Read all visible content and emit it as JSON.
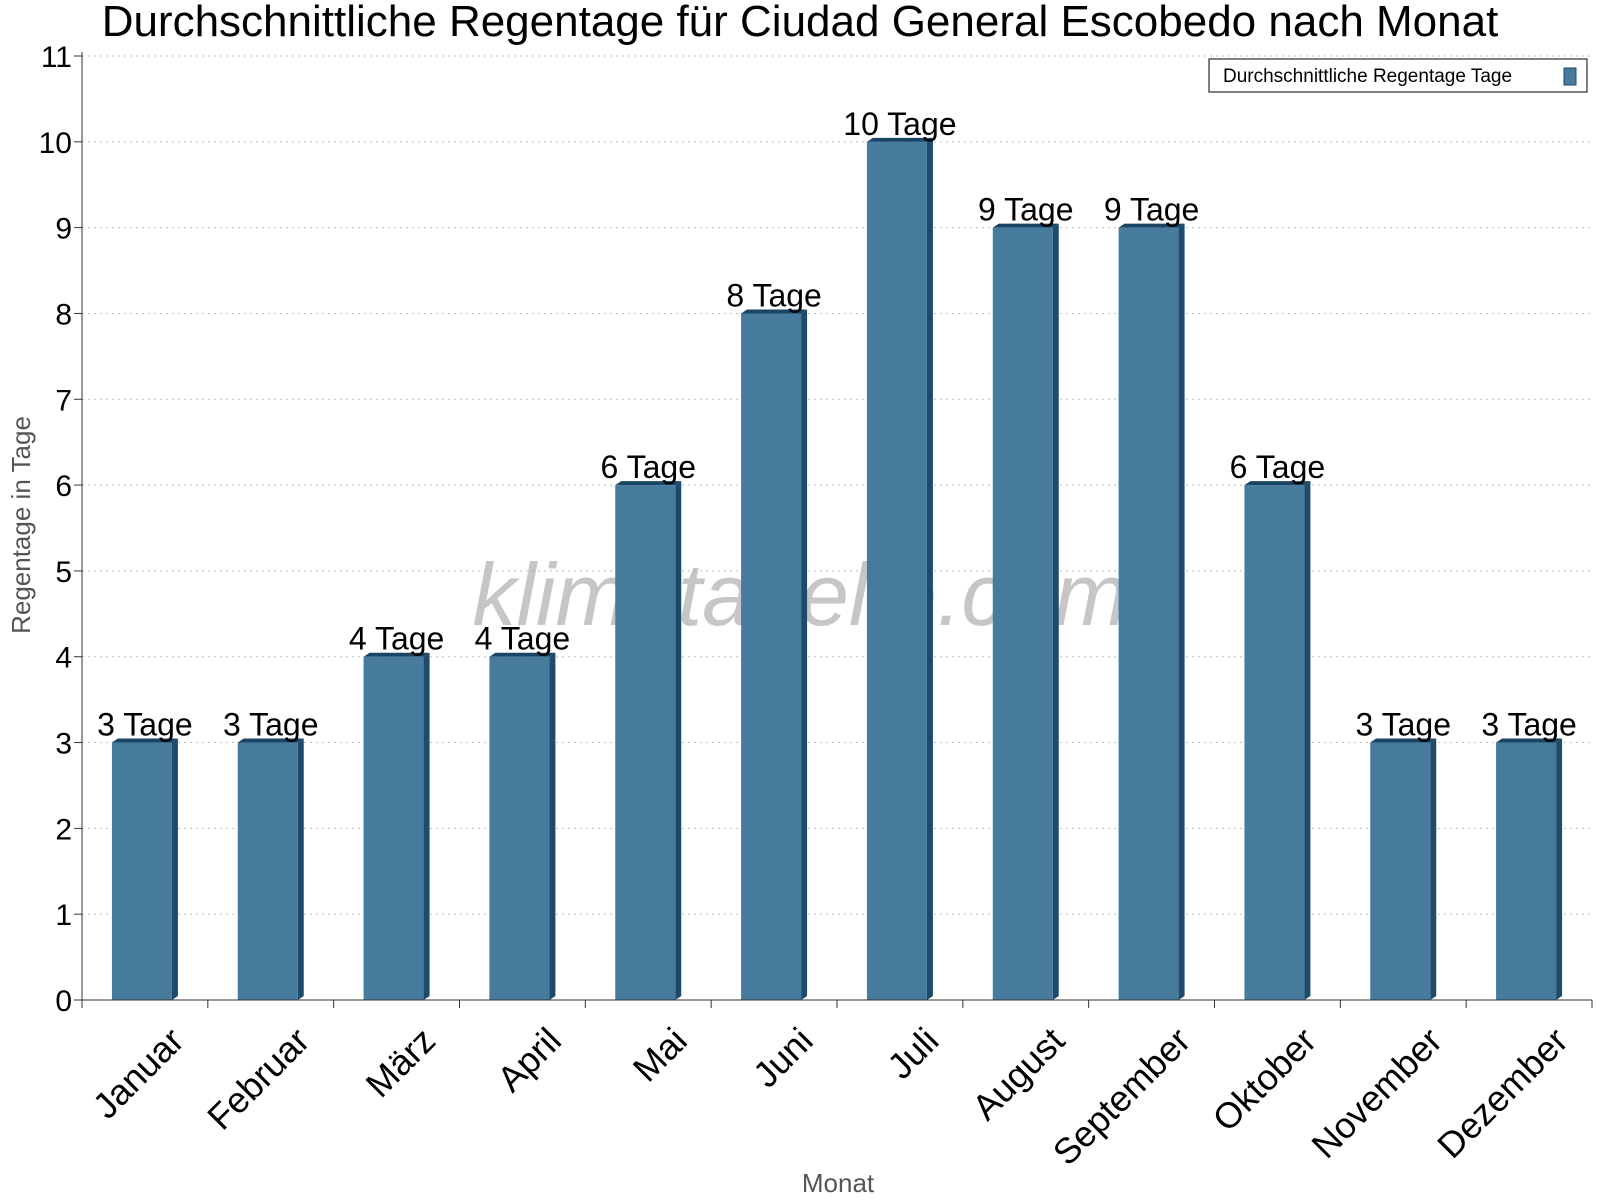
{
  "colors": {
    "bar_face": "#477b9d",
    "bar_side": "#1e4a6b",
    "bar_top": "#1a4565",
    "grid": "#bfbfbf",
    "axis": "#333333"
  },
  "watermark": "klimatabelle.com",
  "chart_data": {
    "type": "bar",
    "title": "Durchschnittliche Regentage für Ciudad General Escobedo nach Monat",
    "xlabel": "Monat",
    "ylabel": "Regentage in Tage",
    "ylim": [
      0,
      11
    ],
    "yticks": [
      0,
      1,
      2,
      3,
      4,
      5,
      6,
      7,
      8,
      9,
      10,
      11
    ],
    "grid": true,
    "legend_position": "top-right",
    "categories": [
      "Januar",
      "Februar",
      "März",
      "April",
      "Mai",
      "Juni",
      "Juli",
      "August",
      "September",
      "Oktober",
      "November",
      "Dezember"
    ],
    "series": [
      {
        "name": "Durchschnittliche Regentage Tage",
        "values": [
          3,
          3,
          4,
          4,
          6,
          8,
          10,
          9,
          9,
          6,
          3,
          3
        ],
        "labels": [
          "3 Tage",
          "3 Tage",
          "4 Tage",
          "4 Tage",
          "6 Tage",
          "8 Tage",
          "10 Tage",
          "9 Tage",
          "9 Tage",
          "6 Tage",
          "3 Tage",
          "3 Tage"
        ]
      }
    ]
  }
}
